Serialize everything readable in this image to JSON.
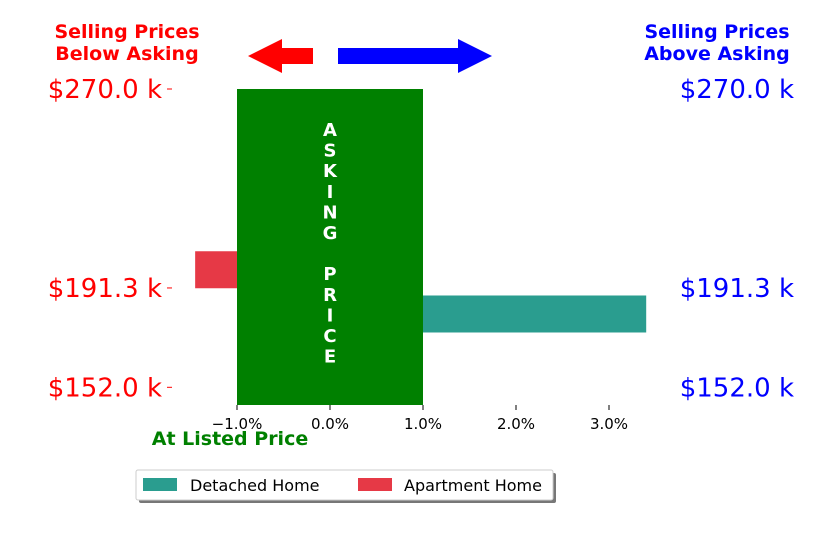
{
  "header": {
    "left_title_line1": "Selling Prices",
    "left_title_line2": "Below Asking",
    "right_title_line1": "Selling Prices",
    "right_title_line2": "Above Asking",
    "left_color": "#ff0000",
    "right_color": "#0000ff"
  },
  "asking_label": "A S K I N G   P R I C E",
  "at_listed_label": "At Listed Price",
  "chart_data": {
    "type": "bar",
    "orientation": "horizontal",
    "x": {
      "ticks": [
        -1.0,
        0.0,
        1.0,
        2.0,
        3.0
      ],
      "tick_labels": [
        "−1.0%",
        "0.0%",
        "1.0%",
        "2.0%",
        "3.0%"
      ],
      "range": [
        -2.0,
        4.0
      ]
    },
    "y": {
      "tick_values": [
        270.0,
        191.3,
        152.0
      ],
      "tick_labels": [
        "$270.0 k",
        "$191.3 k",
        "$152.0 k"
      ],
      "range": [
        145.0,
        270.0
      ]
    },
    "asking_band": {
      "x_range": [
        -1.0,
        1.0
      ],
      "color": "#008000"
    },
    "series": [
      {
        "name": "Detached Home",
        "color": "#2a9d8f",
        "bars": [
          {
            "y": 181.0,
            "value": 3.4
          }
        ]
      },
      {
        "name": "Apartment Home",
        "color": "#e63946",
        "bars": [
          {
            "y": 198.5,
            "value": -1.45
          }
        ]
      }
    ],
    "legend": {
      "placement": "bottom-center"
    }
  }
}
